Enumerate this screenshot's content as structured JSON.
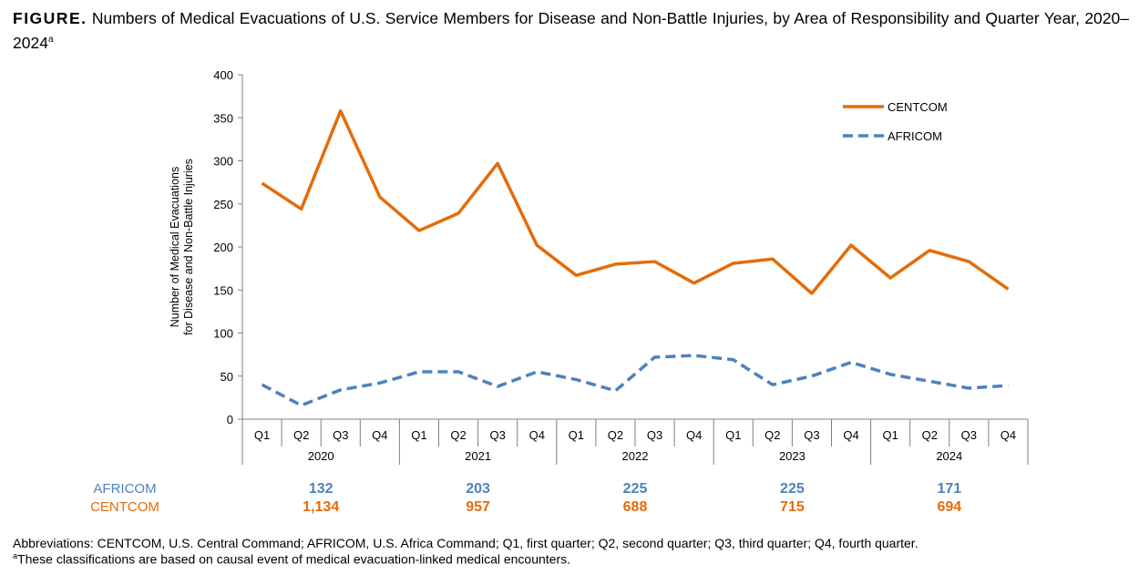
{
  "title": {
    "label": "FIGURE.",
    "text": "Numbers of Medical Evacuations of U.S. Service Members for Disease and Non-Battle Injuries, by Area of Responsibility and Quarter Year, 2020–2024",
    "sup": "a"
  },
  "chart_data": {
    "type": "line",
    "ylabel_lines": [
      "Number of Medical Evacuations",
      "for Disease and Non-Battle Injuries"
    ],
    "ylim": [
      0,
      400
    ],
    "yticks": [
      "0",
      "50",
      "100",
      "150",
      "200",
      "250",
      "300",
      "350",
      "400"
    ],
    "quarters": [
      "Q1",
      "Q2",
      "Q3",
      "Q4"
    ],
    "years": [
      "2020",
      "2021",
      "2022",
      "2023",
      "2024"
    ],
    "legend_position": "top-right",
    "series": [
      {
        "name": "CENTCOM",
        "color": "#E36C0A",
        "style": "solid",
        "values": [
          274,
          244,
          358,
          258,
          219,
          239,
          297,
          202,
          167,
          180,
          183,
          158,
          181,
          186,
          146,
          202,
          164,
          196,
          183,
          151
        ]
      },
      {
        "name": "AFRICOM",
        "color": "#4F81BD",
        "style": "dashed",
        "values": [
          40,
          16,
          34,
          42,
          55,
          55,
          38,
          55,
          46,
          33,
          72,
          74,
          69,
          40,
          50,
          66,
          52,
          44,
          36,
          39
        ]
      }
    ],
    "totals": [
      {
        "name": "AFRICOM",
        "color": "#4F81BD",
        "values": [
          "132",
          "203",
          "225",
          "225",
          "171"
        ]
      },
      {
        "name": "CENTCOM",
        "color": "#E36C0A",
        "values": [
          "1,134",
          "957",
          "688",
          "715",
          "694"
        ]
      }
    ]
  },
  "footnotes": {
    "abbrev": "Abbreviations: CENTCOM, U.S. Central Command; AFRICOM, U.S. Africa Command; Q1, first quarter; Q2, second quarter; Q3, third quarter; Q4, fourth quarter.",
    "note_mark": "a",
    "note": "These classifications are based on causal event of medical evacuation-linked medical encounters."
  }
}
